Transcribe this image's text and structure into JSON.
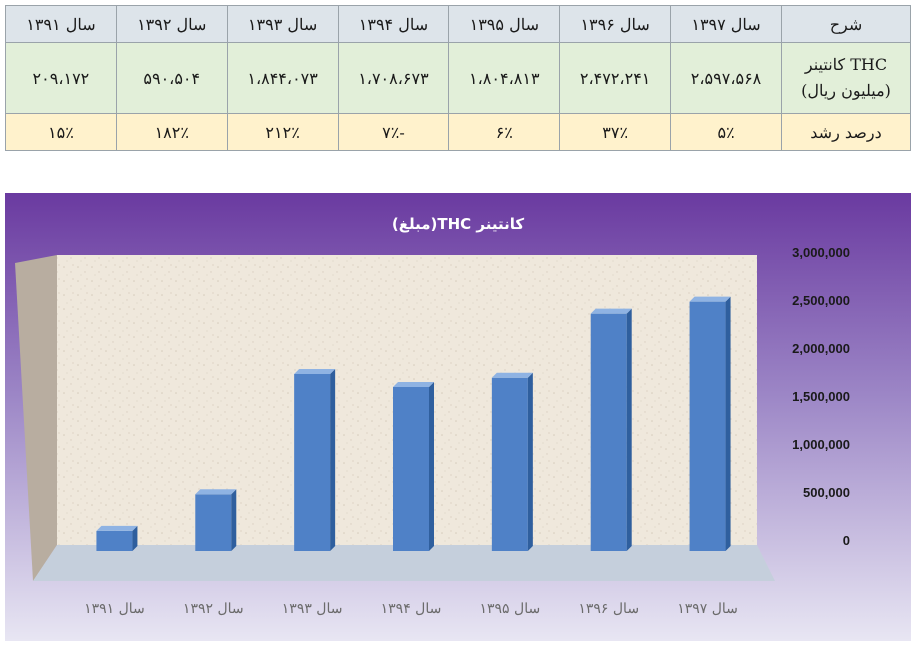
{
  "table": {
    "header": {
      "label": "شرح",
      "years": [
        "سال ۱۳۹۷",
        "سال ۱۳۹۶",
        "سال ۱۳۹۵",
        "سال ۱۳۹۴",
        "سال ۱۳۹۳",
        "سال ۱۳۹۲",
        "سال ۱۳۹۱"
      ]
    },
    "value_row": {
      "label_line1": "کانتینر THC",
      "label_line2": "(میلیون ریال)",
      "values": [
        "۲،۵۹۷،۵۶۸",
        "۲،۴۷۲،۲۴۱",
        "۱،۸۰۴،۸۱۳",
        "۱،۷۰۸،۶۷۳",
        "۱،۸۴۴،۰۷۳",
        "۵۹۰،۵۰۴",
        "۲۰۹،۱۷۲"
      ]
    },
    "growth_row": {
      "label": "درصد رشد",
      "values": [
        "۵٪",
        "۳۷٪",
        "۶٪",
        "۷٪-",
        "۲۱۲٪",
        "۱۸۲٪",
        "۱۵٪"
      ]
    }
  },
  "chart_data": {
    "type": "bar",
    "title": "کانتینر THC(مبلغ)",
    "categories": [
      "سال ۱۳۹۱",
      "سال ۱۳۹۲",
      "سال ۱۳۹۳",
      "سال ۱۳۹۴",
      "سال ۱۳۹۵",
      "سال ۱۳۹۶",
      "سال ۱۳۹۷"
    ],
    "values": [
      209172,
      590504,
      1844073,
      1708673,
      1804813,
      2472241,
      2597568
    ],
    "ylim": [
      0,
      3000000
    ],
    "yticks": [
      "0",
      "500,000",
      "1,000,000",
      "1,500,000",
      "2,000,000",
      "2,500,000",
      "3,000,000"
    ],
    "ytick_values": [
      0,
      500000,
      1000000,
      1500000,
      2000000,
      2500000,
      3000000
    ],
    "y_axis_side": "right",
    "legend": "none",
    "grid": false,
    "colors": {
      "bar_front": "#4f81c7",
      "bar_top": "#8fb3e3",
      "bar_side": "#2f5f9e",
      "wall": "#efe8dc",
      "side_wall": "#b8ada0",
      "floor": "#c5cfdc",
      "title_text": "#ffffff",
      "tick_text": "#1a1a1a",
      "category_text": "#6b6b6b"
    }
  }
}
